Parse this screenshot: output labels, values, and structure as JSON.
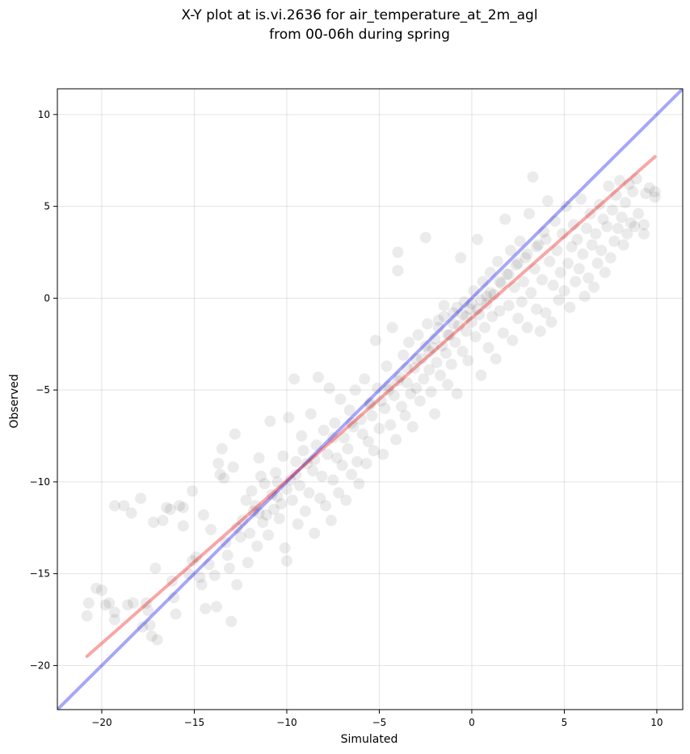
{
  "chart_data": {
    "type": "scatter",
    "title_line1": "X-Y plot at is.vi.2636 for air_temperature_at_2m_agl",
    "title_line2": "from 00-06h during spring",
    "xlabel": "Simulated",
    "ylabel": "Observed",
    "xlim": [
      -22.4,
      11.4
    ],
    "ylim": [
      -22.4,
      11.4
    ],
    "xticks": [
      -20,
      -15,
      -10,
      -5,
      0,
      5,
      10
    ],
    "yticks": [
      -20,
      -15,
      -10,
      -5,
      0,
      5,
      10
    ],
    "xtick_labels": [
      "−20",
      "−15",
      "−10",
      "−5",
      "0",
      "5",
      "10"
    ],
    "ytick_labels": [
      "−20",
      "−15",
      "−10",
      "−5",
      "0",
      "5",
      "10"
    ],
    "grid": true,
    "point_color": "#000000",
    "point_alpha": 0.08,
    "points": [
      [
        -20.7,
        -16.6
      ],
      [
        -20.8,
        -17.3
      ],
      [
        -20.3,
        -15.8
      ],
      [
        -20.0,
        -15.9
      ],
      [
        -19.8,
        -16.7
      ],
      [
        -19.6,
        -16.6
      ],
      [
        -19.3,
        -17.1
      ],
      [
        -19.3,
        -17.5
      ],
      [
        -19.3,
        -11.3
      ],
      [
        -18.8,
        -11.3
      ],
      [
        -18.6,
        -16.7
      ],
      [
        -18.3,
        -16.6
      ],
      [
        -18.4,
        -11.7
      ],
      [
        -17.9,
        -10.9
      ],
      [
        -17.8,
        -17.9
      ],
      [
        -17.6,
        -16.6
      ],
      [
        -17.5,
        -17.0
      ],
      [
        -17.4,
        -17.8
      ],
      [
        -17.3,
        -18.4
      ],
      [
        -17.0,
        -18.6
      ],
      [
        -17.2,
        -12.2
      ],
      [
        -17.1,
        -14.7
      ],
      [
        -16.7,
        -12.1
      ],
      [
        -16.5,
        -11.4
      ],
      [
        -16.3,
        -11.5
      ],
      [
        -16.2,
        -15.4
      ],
      [
        -16.1,
        -16.3
      ],
      [
        -16.0,
        -17.2
      ],
      [
        -15.8,
        -11.3
      ],
      [
        -15.6,
        -11.4
      ],
      [
        -15.6,
        -12.4
      ],
      [
        -15.3,
        -15.0
      ],
      [
        -15.1,
        -10.5
      ],
      [
        -15.1,
        -14.3
      ],
      [
        -14.9,
        -14.1
      ],
      [
        -14.7,
        -15.2
      ],
      [
        -14.6,
        -15.6
      ],
      [
        -14.5,
        -11.8
      ],
      [
        -14.4,
        -16.9
      ],
      [
        -14.2,
        -14.5
      ],
      [
        -14.1,
        -12.6
      ],
      [
        -13.9,
        -15.1
      ],
      [
        -13.8,
        -16.8
      ],
      [
        -13.7,
        -9.0
      ],
      [
        -13.6,
        -9.6
      ],
      [
        -13.5,
        -8.2
      ],
      [
        -13.4,
        -9.8
      ],
      [
        -13.3,
        -13.3
      ],
      [
        -13.2,
        -14.0
      ],
      [
        -13.1,
        -14.7
      ],
      [
        -13.0,
        -17.6
      ],
      [
        -12.9,
        -9.2
      ],
      [
        -12.8,
        -7.4
      ],
      [
        -12.7,
        -12.5
      ],
      [
        -12.7,
        -15.6
      ],
      [
        -12.5,
        -13.0
      ],
      [
        -12.4,
        -12.1
      ],
      [
        -12.2,
        -11.0
      ],
      [
        -12.1,
        -14.4
      ],
      [
        -12.0,
        -12.8
      ],
      [
        -11.9,
        -10.5
      ],
      [
        -11.8,
        -11.6
      ],
      [
        -11.7,
        -11.3
      ],
      [
        -11.6,
        -13.5
      ],
      [
        -11.5,
        -8.7
      ],
      [
        -11.4,
        -9.7
      ],
      [
        -11.3,
        -12.2
      ],
      [
        -11.2,
        -10.1
      ],
      [
        -11.1,
        -11.8
      ],
      [
        -11.0,
        -12.9
      ],
      [
        -10.9,
        -6.7
      ],
      [
        -10.8,
        -10.7
      ],
      [
        -10.7,
        -11.5
      ],
      [
        -10.6,
        -9.5
      ],
      [
        -10.5,
        -10.0
      ],
      [
        -10.4,
        -12.0
      ],
      [
        -10.3,
        -11.2
      ],
      [
        -10.2,
        -8.6
      ],
      [
        -10.1,
        -13.6
      ],
      [
        -10.0,
        -14.3
      ],
      [
        -10.0,
        -10.4
      ],
      [
        -9.9,
        -6.5
      ],
      [
        -9.8,
        -9.9
      ],
      [
        -9.7,
        -11.0
      ],
      [
        -9.6,
        -4.4
      ],
      [
        -9.5,
        -8.9
      ],
      [
        -9.4,
        -12.3
      ],
      [
        -9.3,
        -10.2
      ],
      [
        -9.2,
        -7.5
      ],
      [
        -9.1,
        -8.3
      ],
      [
        -9.0,
        -11.6
      ],
      [
        -8.9,
        -9.0
      ],
      [
        -8.8,
        -10.6
      ],
      [
        -8.7,
        -6.3
      ],
      [
        -8.6,
        -9.4
      ],
      [
        -8.5,
        -12.8
      ],
      [
        -8.4,
        -8.0
      ],
      [
        -8.3,
        -4.3
      ],
      [
        -8.2,
        -10.9
      ],
      [
        -8.1,
        -9.7
      ],
      [
        -8.0,
        -7.2
      ],
      [
        -7.9,
        -11.3
      ],
      [
        -7.8,
        -8.5
      ],
      [
        -7.7,
        -4.9
      ],
      [
        -7.6,
        -12.1
      ],
      [
        -7.5,
        -9.9
      ],
      [
        -7.4,
        -6.8
      ],
      [
        -7.3,
        -8.7
      ],
      [
        -7.2,
        -10.6
      ],
      [
        -7.1,
        -5.5
      ],
      [
        -7.0,
        -9.1
      ],
      [
        -6.9,
        -7.6
      ],
      [
        -6.8,
        -11.0
      ],
      [
        -6.7,
        -8.2
      ],
      [
        -6.6,
        -6.1
      ],
      [
        -6.5,
        -9.6
      ],
      [
        -6.4,
        -7.0
      ],
      [
        -6.3,
        -5.0
      ],
      [
        -6.2,
        -8.9
      ],
      [
        -6.1,
        -10.1
      ],
      [
        -6.0,
        -6.6
      ],
      [
        -5.9,
        -7.4
      ],
      [
        -5.8,
        -4.4
      ],
      [
        -5.7,
        -9.0
      ],
      [
        -5.6,
        -7.8
      ],
      [
        -5.5,
        -5.8
      ],
      [
        -5.4,
        -6.4
      ],
      [
        -5.3,
        -8.3
      ],
      [
        -5.2,
        -2.3
      ],
      [
        -5.1,
        -4.9
      ],
      [
        -5.0,
        -7.1
      ],
      [
        -4.9,
        -5.6
      ],
      [
        -4.8,
        -8.5
      ],
      [
        -4.7,
        -6.0
      ],
      [
        -4.6,
        -3.7
      ],
      [
        -4.5,
        -4.8
      ],
      [
        -4.4,
        -6.9
      ],
      [
        -4.3,
        -1.6
      ],
      [
        -4.2,
        -5.3
      ],
      [
        -4.1,
        -7.7
      ],
      [
        -4.0,
        2.5
      ],
      [
        -4.0,
        1.5
      ],
      [
        -3.9,
        -4.3
      ],
      [
        -3.8,
        -5.9
      ],
      [
        -3.7,
        -3.1
      ],
      [
        -3.6,
        -6.4
      ],
      [
        -3.5,
        -4.6
      ],
      [
        -3.4,
        -2.4
      ],
      [
        -3.3,
        -5.2
      ],
      [
        -3.2,
        -7.0
      ],
      [
        -3.1,
        -3.8
      ],
      [
        -3.0,
        -4.9
      ],
      [
        -2.9,
        -2.0
      ],
      [
        -2.8,
        -5.6
      ],
      [
        -2.7,
        -3.3
      ],
      [
        -2.6,
        -4.4
      ],
      [
        -2.5,
        3.3
      ],
      [
        -2.4,
        -1.4
      ],
      [
        -2.3,
        -3.9
      ],
      [
        -2.2,
        -5.1
      ],
      [
        -2.1,
        -2.7
      ],
      [
        -2.0,
        -6.3
      ],
      [
        -1.9,
        -3.5
      ],
      [
        -1.8,
        -1.2
      ],
      [
        -1.7,
        -4.2
      ],
      [
        -1.6,
        -2.6
      ],
      [
        -1.5,
        -0.4
      ],
      [
        -1.4,
        -3.0
      ],
      [
        -1.3,
        -4.7
      ],
      [
        -1.2,
        -2.0
      ],
      [
        -1.1,
        -3.6
      ],
      [
        -1.0,
        -0.8
      ],
      [
        -0.9,
        -2.4
      ],
      [
        -0.8,
        -5.2
      ],
      [
        -0.7,
        -1.5
      ],
      [
        -0.6,
        2.2
      ],
      [
        -0.5,
        -2.9
      ],
      [
        -0.4,
        -0.2
      ],
      [
        -0.3,
        -1.8
      ],
      [
        -0.2,
        -3.4
      ],
      [
        -0.1,
        -0.6
      ],
      [
        0.0,
        -1.3
      ],
      [
        0.1,
        0.4
      ],
      [
        0.2,
        -2.1
      ],
      [
        0.3,
        3.2
      ],
      [
        0.4,
        -0.9
      ],
      [
        0.5,
        -4.2
      ],
      [
        0.6,
        0.9
      ],
      [
        0.7,
        -1.6
      ],
      [
        0.8,
        -0.3
      ],
      [
        0.9,
        -2.7
      ],
      [
        1.0,
        1.4
      ],
      [
        1.1,
        -1.0
      ],
      [
        1.2,
        0.2
      ],
      [
        1.3,
        -3.3
      ],
      [
        1.4,
        2.0
      ],
      [
        1.5,
        -0.7
      ],
      [
        1.6,
        0.8
      ],
      [
        1.7,
        -1.9
      ],
      [
        1.8,
        4.3
      ],
      [
        1.9,
        1.3
      ],
      [
        2.0,
        -0.4
      ],
      [
        2.1,
        2.6
      ],
      [
        2.2,
        -2.3
      ],
      [
        2.3,
        0.6
      ],
      [
        2.4,
        1.8
      ],
      [
        2.5,
        -1.1
      ],
      [
        2.6,
        3.1
      ],
      [
        2.7,
        -0.2
      ],
      [
        2.8,
        0.9
      ],
      [
        2.9,
        2.2
      ],
      [
        3.0,
        -1.6
      ],
      [
        3.1,
        4.6
      ],
      [
        3.2,
        0.3
      ],
      [
        3.3,
        6.6
      ],
      [
        3.4,
        1.6
      ],
      [
        3.5,
        -0.6
      ],
      [
        3.6,
        2.9
      ],
      [
        3.7,
        -1.8
      ],
      [
        3.8,
        1.0
      ],
      [
        3.9,
        3.6
      ],
      [
        4.0,
        -0.8
      ],
      [
        4.1,
        5.3
      ],
      [
        4.2,
        2.0
      ],
      [
        4.3,
        -1.3
      ],
      [
        4.4,
        0.7
      ],
      [
        4.5,
        4.2
      ],
      [
        4.6,
        2.6
      ],
      [
        4.7,
        -0.1
      ],
      [
        4.8,
        1.4
      ],
      [
        4.9,
        3.5
      ],
      [
        5.0,
        0.4
      ],
      [
        5.1,
        5.0
      ],
      [
        5.2,
        1.9
      ],
      [
        5.3,
        -0.5
      ],
      [
        5.4,
        2.8
      ],
      [
        5.5,
        4.0
      ],
      [
        5.6,
        0.9
      ],
      [
        5.7,
        3.2
      ],
      [
        5.8,
        1.6
      ],
      [
        5.9,
        5.4
      ],
      [
        6.0,
        2.4
      ],
      [
        6.1,
        0.1
      ],
      [
        6.2,
        3.8
      ],
      [
        6.3,
        1.1
      ],
      [
        6.4,
        4.6
      ],
      [
        6.5,
        2.9
      ],
      [
        6.6,
        0.6
      ],
      [
        6.7,
        3.5
      ],
      [
        6.8,
        1.9
      ],
      [
        6.9,
        5.1
      ],
      [
        7.0,
        2.6
      ],
      [
        7.1,
        4.3
      ],
      [
        7.2,
        1.4
      ],
      [
        7.3,
        3.9
      ],
      [
        7.4,
        6.1
      ],
      [
        7.5,
        2.2
      ],
      [
        7.6,
        4.8
      ],
      [
        7.7,
        3.1
      ],
      [
        7.8,
        5.6
      ],
      [
        7.9,
        3.8
      ],
      [
        8.0,
        6.4
      ],
      [
        8.1,
        4.4
      ],
      [
        8.2,
        2.9
      ],
      [
        8.3,
        5.2
      ],
      [
        8.4,
        3.5
      ],
      [
        8.5,
        6.2
      ],
      [
        8.6,
        4.1
      ],
      [
        8.7,
        5.8
      ],
      [
        8.8,
        3.9
      ],
      [
        8.9,
        6.5
      ],
      [
        9.0,
        4.6
      ],
      [
        9.3,
        3.5
      ],
      [
        9.3,
        4.0
      ],
      [
        9.4,
        5.7
      ],
      [
        9.6,
        6.0
      ],
      [
        9.9,
        5.8
      ],
      [
        9.9,
        5.5
      ],
      [
        -1.5,
        -1.0
      ],
      [
        -1.0,
        -1.4
      ],
      [
        -0.5,
        -0.9
      ],
      [
        0.0,
        -0.3
      ],
      [
        0.5,
        -0.1
      ],
      [
        1.0,
        0.3
      ],
      [
        -2.0,
        -2.2
      ],
      [
        -2.5,
        -2.6
      ],
      [
        -3.0,
        -3.3
      ],
      [
        -3.5,
        -3.8
      ],
      [
        -4.0,
        -4.5
      ],
      [
        -4.5,
        -5.0
      ],
      [
        -5.5,
        -5.7
      ],
      [
        -6.5,
        -6.8
      ],
      [
        -7.5,
        -7.6
      ],
      [
        -8.5,
        -8.8
      ],
      [
        -9.5,
        -9.6
      ],
      [
        -10.5,
        -10.8
      ],
      [
        -11.5,
        -11.7
      ],
      [
        1.5,
        0.9
      ],
      [
        2.0,
        1.3
      ],
      [
        2.5,
        1.9
      ],
      [
        3.0,
        2.4
      ],
      [
        3.5,
        2.8
      ],
      [
        4.0,
        3.2
      ],
      [
        -0.8,
        -0.5
      ],
      [
        -0.3,
        -1.0
      ],
      [
        0.3,
        -0.6
      ],
      [
        0.8,
        0.1
      ],
      [
        -1.3,
        -2.0
      ],
      [
        -1.8,
        -1.6
      ],
      [
        -2.3,
        -2.9
      ]
    ],
    "series": [
      {
        "name": "",
        "type": "line",
        "role": "1:1 reference",
        "color": "#0000ee",
        "alpha": 0.35,
        "x": [
          -22.4,
          11.4
        ],
        "y": [
          -22.4,
          11.4
        ]
      },
      {
        "name": "",
        "type": "line",
        "role": "regression fit",
        "color": "#ee0000",
        "alpha": 0.35,
        "x": [
          -20.8,
          9.9
        ],
        "y": [
          -19.5,
          7.7
        ]
      }
    ]
  }
}
